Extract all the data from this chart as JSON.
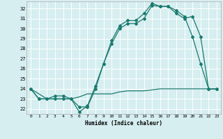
{
  "xlabel": "Humidex (Indice chaleur)",
  "background_color": "#d6eef0",
  "grid_color": "#ffffff",
  "line_color": "#1a7a6e",
  "xlim": [
    -0.5,
    23.5
  ],
  "ylim": [
    21.5,
    32.7
  ],
  "xticks": [
    0,
    1,
    2,
    3,
    4,
    5,
    6,
    7,
    8,
    9,
    10,
    11,
    12,
    13,
    14,
    15,
    16,
    17,
    18,
    19,
    20,
    21,
    22,
    23
  ],
  "yticks": [
    22,
    23,
    24,
    25,
    26,
    27,
    28,
    29,
    30,
    31,
    32
  ],
  "curve1_x": [
    0,
    1,
    2,
    3,
    4,
    5,
    6,
    7,
    8,
    9,
    10,
    11,
    12,
    13,
    14,
    15,
    16,
    17,
    18,
    19,
    20,
    21,
    22,
    23
  ],
  "curve1_y": [
    24,
    23,
    23,
    23.3,
    23.3,
    23,
    21.7,
    22.3,
    24.3,
    26.5,
    28.8,
    30.3,
    30.8,
    30.8,
    31.5,
    32.5,
    32.2,
    32.2,
    31.8,
    31.2,
    29.2,
    26.5,
    24,
    24
  ],
  "curve2_x": [
    0,
    1,
    2,
    3,
    4,
    5,
    6,
    7,
    8,
    9,
    10,
    11,
    12,
    13,
    14,
    15,
    16,
    17,
    18,
    19,
    20,
    21,
    22,
    23
  ],
  "curve2_y": [
    24,
    23,
    23,
    23,
    23,
    23,
    22.2,
    22.2,
    24,
    26.5,
    28.5,
    30,
    30.5,
    30.5,
    31,
    32.3,
    32.2,
    32.2,
    31.5,
    31,
    31.2,
    29.2,
    24,
    24
  ],
  "curve3_x": [
    0,
    1,
    2,
    3,
    4,
    5,
    6,
    7,
    8,
    9,
    10,
    11,
    12,
    13,
    14,
    15,
    16,
    17,
    18,
    19,
    20,
    21,
    22,
    23
  ],
  "curve3_y": [
    24,
    23.5,
    23,
    23,
    23,
    23,
    23.2,
    23.5,
    23.5,
    23.5,
    23.5,
    23.7,
    23.8,
    23.8,
    23.8,
    23.9,
    24,
    24,
    24,
    24,
    24,
    24,
    24,
    24
  ]
}
